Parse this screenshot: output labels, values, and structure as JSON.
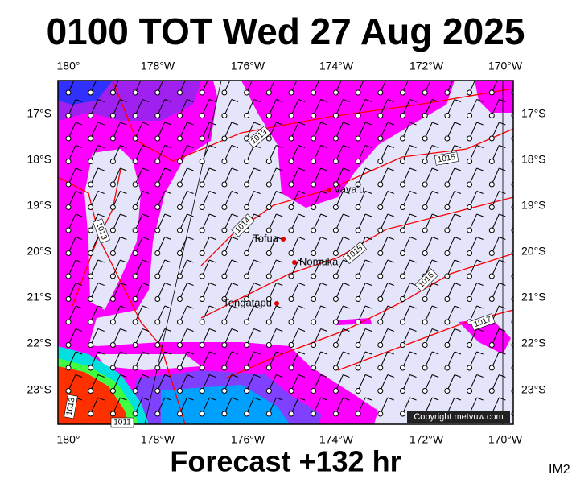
{
  "header": {
    "title": "0100 TOT Wed 27 Aug 2025"
  },
  "footer": {
    "forecast": "Forecast +132 hr",
    "image_id": "IM2"
  },
  "axes": {
    "lon_labels": [
      "180°",
      "178°W",
      "176°W",
      "174°W",
      "172°W",
      "170°W"
    ],
    "lat_labels": [
      "17°S",
      "18°S",
      "19°S",
      "20°S",
      "21°S",
      "22°S",
      "23°S"
    ]
  },
  "places": [
    "Vava'u",
    "Tofua",
    "Nomuka",
    "Tongatapu"
  ],
  "isobars": [
    "1013",
    "1013",
    "1014",
    "1015",
    "1016",
    "1017",
    "1015",
    "1013",
    "1011"
  ],
  "copyright": "Copyright metvuw.com"
}
